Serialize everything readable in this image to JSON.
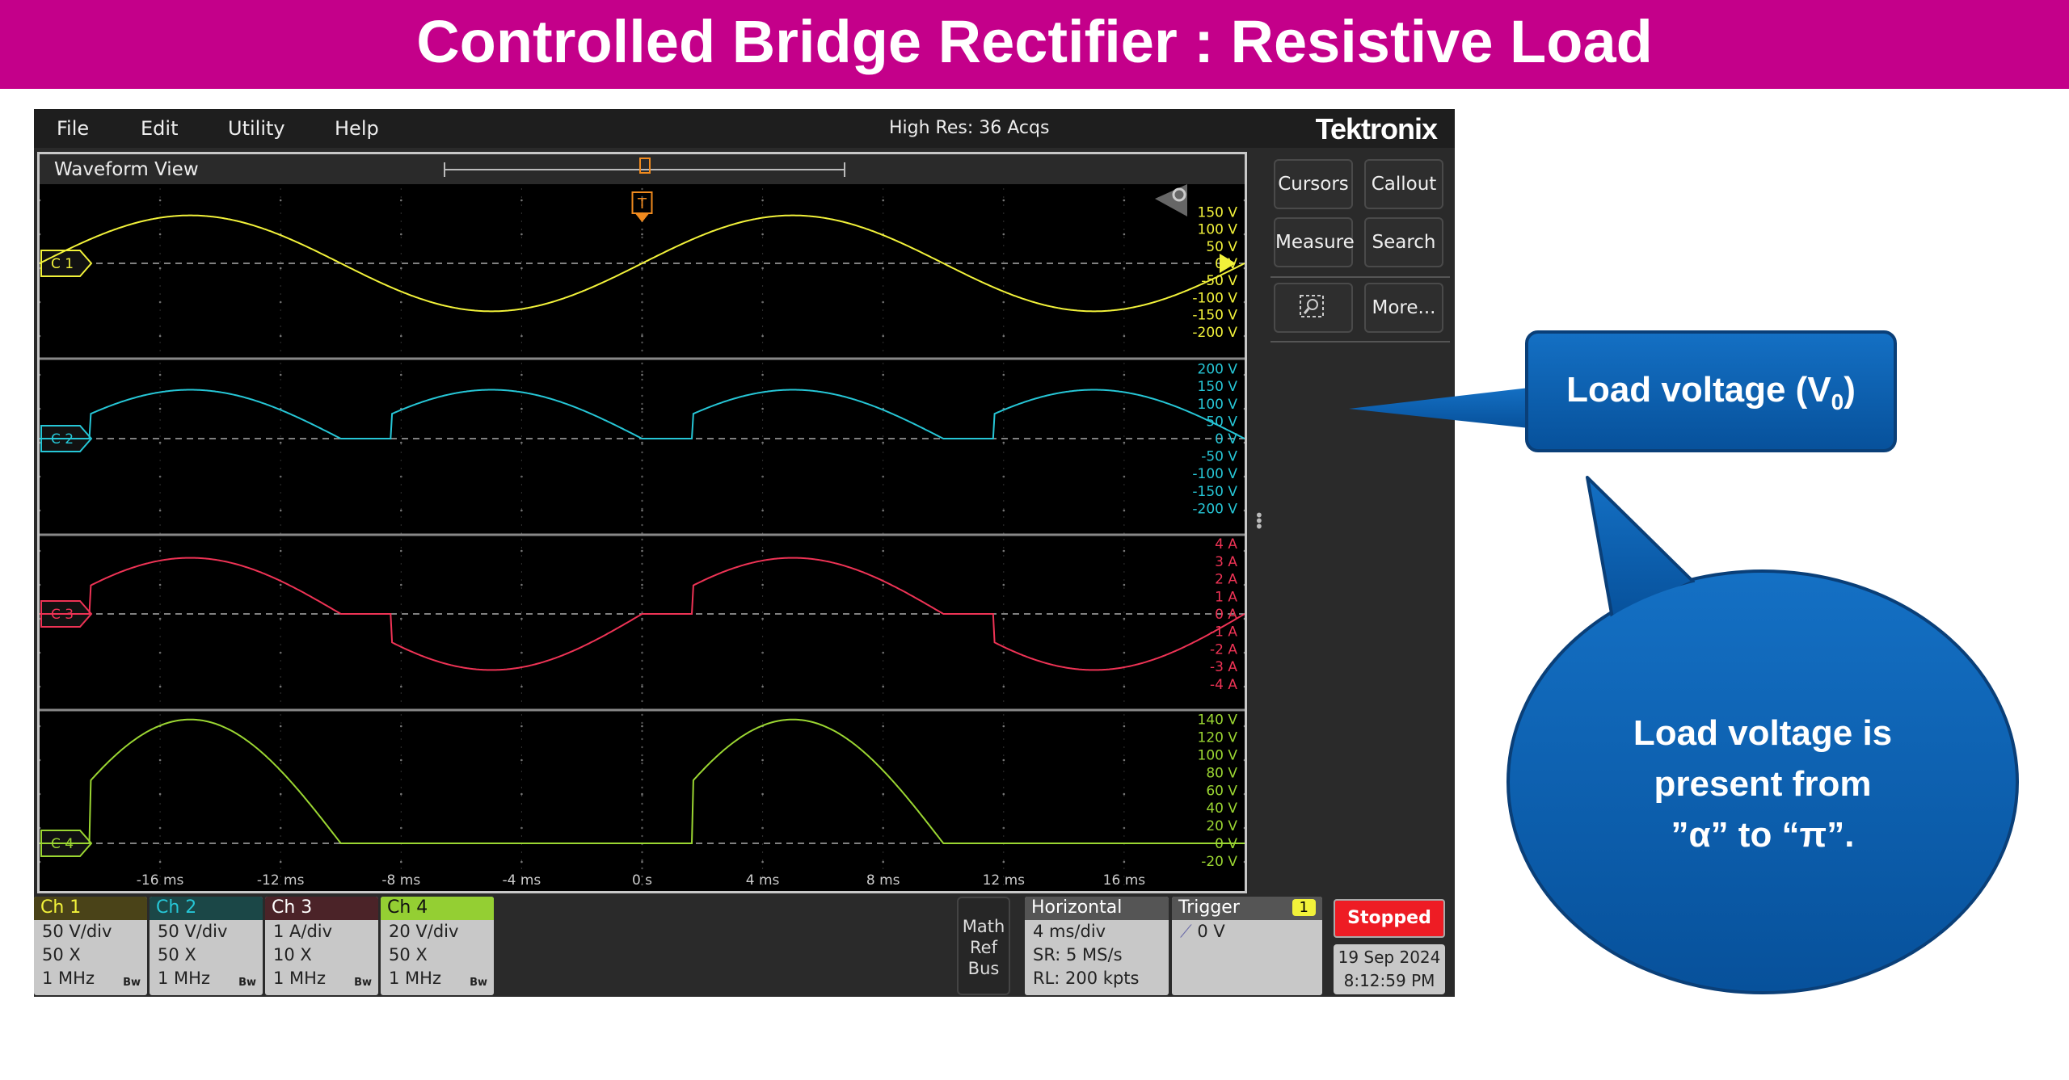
{
  "slide_title": "Controlled Bridge Rectifier : Resistive Load",
  "menu": [
    "File",
    "Edit",
    "Utility",
    "Help"
  ],
  "acquisition": "High Res: 36 Acqs",
  "brand": "Tektronix",
  "waveform_view_title": "Waveform View",
  "trigger_marker": "T",
  "side_buttons": {
    "cursors": "Cursors",
    "callout": "Callout",
    "measure": "Measure",
    "search": "Search",
    "more": "More..."
  },
  "channel_tags": [
    "C 1",
    "C 2",
    "C 3",
    "C 4"
  ],
  "colors": {
    "ch1": "#f2f23a",
    "ch2": "#26c6d6",
    "ch3": "#ee3355",
    "ch4": "#9bd632",
    "title_bar": "#C4008A",
    "callout": "#0B5CAB",
    "trigger": "#f08a1e"
  },
  "scales": {
    "ch1": [
      "150 V",
      "100 V",
      "50 V",
      "0 V",
      "-50 V",
      "-100 V",
      "-150 V",
      "-200 V"
    ],
    "ch2": [
      "200 V",
      "150 V",
      "100 V",
      "50 V",
      "0 V",
      "-50 V",
      "-100 V",
      "-150 V",
      "-200 V"
    ],
    "ch3": [
      "4 A",
      "3 A",
      "2 A",
      "1 A",
      "0 A",
      "-1 A",
      "-2 A",
      "-3 A",
      "-4 A"
    ],
    "ch4": [
      "140 V",
      "120 V",
      "100 V",
      "80 V",
      "60 V",
      "40 V",
      "20 V",
      "0 V",
      "-20 V"
    ]
  },
  "time_labels": [
    "-16 ms",
    "-12 ms",
    "-8 ms",
    "-4 ms",
    "0 s",
    "4 ms",
    "8 ms",
    "12 ms",
    "16 ms"
  ],
  "waveforms": {
    "frequency_hz": 50,
    "firing_angle_deg": 30,
    "ch1_peak_v": 140,
    "ch2_peak_v": 140,
    "ch3_peak_a": 3.2,
    "ch4_peak_v": 140
  },
  "channels": [
    {
      "name": "Ch 1",
      "scale": "50 V/div",
      "probe": "50 X",
      "bw": "1 MHz",
      "bw_icon": "Bw"
    },
    {
      "name": "Ch 2",
      "scale": "50 V/div",
      "probe": "50 X",
      "bw": "1 MHz",
      "bw_icon": "Bw"
    },
    {
      "name": "Ch 3",
      "scale": "1 A/div",
      "probe": "10 X",
      "bw": "1 MHz",
      "bw_icon": "Bw"
    },
    {
      "name": "Ch 4",
      "scale": "20 V/div",
      "probe": "50 X",
      "bw": "1 MHz",
      "bw_icon": "Bw"
    }
  ],
  "math_ref_bus": [
    "Math",
    "Ref",
    "Bus"
  ],
  "horizontal": {
    "title": "Horizontal",
    "scale": "4 ms/div",
    "sr": "SR: 5 MS/s",
    "rl": "RL: 200 kpts"
  },
  "trigger": {
    "title": "Trigger",
    "source": "1",
    "level": "0 V"
  },
  "run_state": "Stopped",
  "date": "19 Sep 2024",
  "time": "8:12:59 PM",
  "callout1": {
    "text": "Load voltage (V",
    "sub": "0",
    "tail": ")"
  },
  "callout2": {
    "lines": [
      "Load voltage is",
      "present from",
      "”α” to “π”."
    ]
  }
}
